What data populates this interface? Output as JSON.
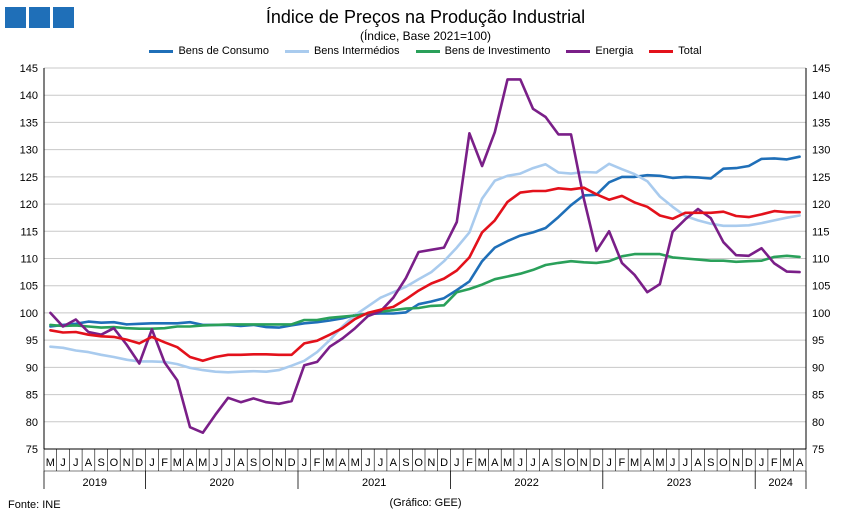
{
  "header": {
    "title": "Índice de Preços na Produção Industrial",
    "subtitle": "(Índice, Base 2021=100)"
  },
  "footer": {
    "source": "Fonte: INE",
    "credit": "(Gráfico: GEE)"
  },
  "colors": {
    "logo": "#1f6fb8",
    "grid": "#c8c8c8",
    "axis": "#000000"
  },
  "chart_data": {
    "type": "line",
    "title": "Índice de Preços na Produção Industrial",
    "subtitle": "(Índice, Base 2021=100)",
    "ylim": [
      75,
      145
    ],
    "ytick_step": 5,
    "y_axis_both_sides": true,
    "grid": "horizontal",
    "legend_position": "top",
    "x_month_labels": [
      "M",
      "J",
      "J",
      "A",
      "S",
      "O",
      "N",
      "D",
      "J",
      "F",
      "M",
      "A",
      "M",
      "J",
      "J",
      "A",
      "S",
      "O",
      "N",
      "D",
      "J",
      "F",
      "M",
      "A",
      "M",
      "J",
      "J",
      "A",
      "S",
      "O",
      "N",
      "D",
      "J",
      "F",
      "M",
      "A",
      "M",
      "J",
      "J",
      "A",
      "S",
      "O",
      "N",
      "D",
      "J",
      "F",
      "M",
      "A",
      "M",
      "J",
      "J",
      "A",
      "S",
      "O",
      "N",
      "D",
      "J",
      "F",
      "M",
      "A"
    ],
    "years": [
      {
        "label": "2019",
        "start": 0,
        "count": 8
      },
      {
        "label": "2020",
        "start": 8,
        "count": 12
      },
      {
        "label": "2021",
        "start": 20,
        "count": 12
      },
      {
        "label": "2022",
        "start": 32,
        "count": 12
      },
      {
        "label": "2023",
        "start": 44,
        "count": 12
      },
      {
        "label": "2024",
        "start": 56,
        "count": 4
      }
    ],
    "series": [
      {
        "name": "Bens de Consumo",
        "color": "#1f6fb8",
        "values": [
          97.5,
          97.8,
          98.0,
          98.4,
          98.2,
          98.3,
          97.9,
          98.0,
          98.1,
          98.1,
          98.1,
          98.3,
          97.8,
          97.8,
          97.8,
          97.6,
          97.8,
          97.4,
          97.3,
          97.7,
          98.1,
          98.3,
          98.6,
          99.0,
          99.6,
          99.8,
          99.9,
          99.9,
          100.1,
          101.6,
          102.1,
          102.7,
          104.2,
          105.8,
          109.5,
          112.0,
          113.2,
          114.2,
          114.8,
          115.6,
          117.6,
          119.8,
          121.6,
          121.7,
          124.0,
          125.0,
          125.0,
          125.3,
          125.2,
          124.8,
          125.0,
          124.9,
          124.7,
          126.5,
          126.6,
          127.0,
          128.3,
          128.4,
          128.2,
          128.7
        ]
      },
      {
        "name": "Bens Intermédios",
        "color": "#a9cbee",
        "values": [
          93.8,
          93.6,
          93.1,
          92.8,
          92.3,
          91.9,
          91.4,
          91.1,
          91.1,
          91.0,
          90.6,
          89.9,
          89.5,
          89.2,
          89.1,
          89.2,
          89.3,
          89.2,
          89.5,
          90.3,
          91.2,
          92.8,
          95.0,
          97.5,
          99.6,
          101.2,
          102.8,
          103.8,
          104.8,
          106.2,
          107.5,
          109.5,
          112.0,
          114.8,
          121.0,
          124.3,
          125.2,
          125.6,
          126.6,
          127.3,
          125.8,
          125.6,
          125.9,
          125.8,
          127.4,
          126.4,
          125.5,
          124.2,
          121.4,
          119.5,
          117.8,
          117.0,
          116.4,
          116.0,
          116.0,
          116.1,
          116.5,
          117.0,
          117.5,
          117.9
        ]
      },
      {
        "name": "Bens de Investimento",
        "color": "#2aa05a",
        "values": [
          97.8,
          97.6,
          97.7,
          97.5,
          97.3,
          97.4,
          97.2,
          97.1,
          97.1,
          97.2,
          97.5,
          97.5,
          97.7,
          97.8,
          97.9,
          97.9,
          97.9,
          97.9,
          97.9,
          97.9,
          98.7,
          98.7,
          99.1,
          99.3,
          99.5,
          99.8,
          100.2,
          100.5,
          100.8,
          100.9,
          101.3,
          101.4,
          103.8,
          104.4,
          105.2,
          106.2,
          106.7,
          107.2,
          107.9,
          108.8,
          109.2,
          109.5,
          109.3,
          109.2,
          109.5,
          110.4,
          110.8,
          110.8,
          110.8,
          110.2,
          110.0,
          109.8,
          109.6,
          109.6,
          109.4,
          109.5,
          109.6,
          110.3,
          110.5,
          110.3
        ]
      },
      {
        "name": "Energia",
        "color": "#7a1f88",
        "values": [
          100.0,
          97.5,
          98.8,
          96.5,
          96.0,
          97.2,
          94.2,
          90.7,
          97.0,
          90.9,
          87.6,
          79.0,
          78.0,
          81.3,
          84.4,
          83.6,
          84.3,
          83.6,
          83.3,
          83.8,
          90.4,
          91.0,
          93.8,
          95.3,
          97.2,
          99.4,
          100.3,
          102.8,
          106.4,
          111.2,
          111.6,
          112.0,
          116.7,
          133.0,
          127.0,
          133.2,
          142.9,
          142.9,
          137.5,
          136.0,
          132.8,
          132.8,
          121.0,
          111.4,
          115.0,
          109.2,
          107.0,
          103.8,
          105.3,
          114.9,
          117.2,
          119.1,
          117.4,
          113.0,
          110.6,
          110.5,
          111.9,
          109.1,
          107.6,
          107.5
        ]
      },
      {
        "name": "Total",
        "color": "#e3111b",
        "values": [
          96.8,
          96.4,
          96.5,
          96.0,
          95.7,
          95.6,
          95.1,
          94.4,
          95.6,
          94.6,
          93.7,
          91.9,
          91.2,
          91.9,
          92.3,
          92.3,
          92.4,
          92.4,
          92.3,
          92.3,
          94.4,
          94.9,
          96.0,
          97.2,
          98.9,
          100.0,
          100.6,
          101.1,
          102.5,
          104.1,
          105.4,
          106.3,
          107.8,
          110.2,
          114.8,
          117.0,
          120.4,
          122.1,
          122.4,
          122.4,
          122.9,
          122.7,
          123.0,
          121.8,
          120.8,
          121.5,
          120.3,
          119.5,
          117.9,
          117.3,
          118.4,
          118.4,
          118.4,
          118.6,
          117.8,
          117.6,
          118.1,
          118.7,
          118.5,
          118.5
        ]
      }
    ]
  }
}
